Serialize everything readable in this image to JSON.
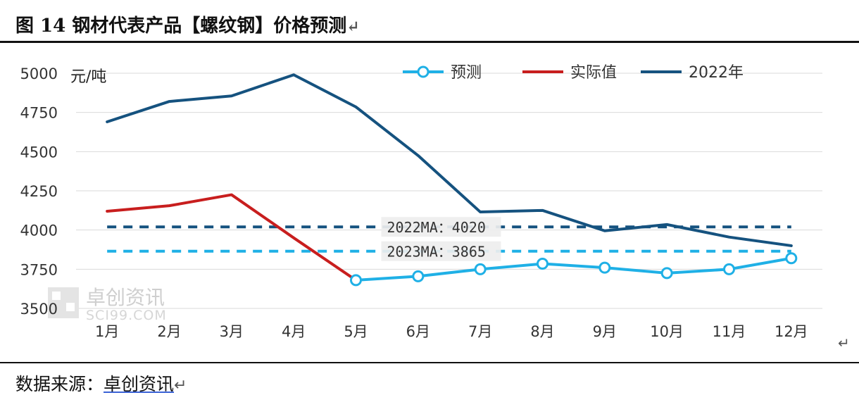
{
  "figure": {
    "title": "图 14 钢材代表产品【螺纹钢】价格预测",
    "source_label": "数据来源：",
    "source_name": "卓创资讯",
    "watermark_cn": "卓创资讯",
    "watermark_en": "SCI99.COM",
    "return_mark": "↵"
  },
  "colors": {
    "forecast": "#1fb0e6",
    "actual": "#c81e1e",
    "y2022": "#15527f",
    "ma2022": "#15527f",
    "ma2023": "#1fb0e6",
    "grid": "#d9d9d9",
    "axis_text": "#333333"
  },
  "chart_data": {
    "type": "line",
    "title": "",
    "ylabel": "元/吨",
    "ylim": [
      3500,
      5000
    ],
    "yticks": [
      3500,
      3750,
      4000,
      4250,
      4500,
      4750,
      5000
    ],
    "categories": [
      "1月",
      "2月",
      "3月",
      "4月",
      "5月",
      "6月",
      "7月",
      "8月",
      "9月",
      "10月",
      "11月",
      "12月"
    ],
    "legend_position": "top",
    "series": [
      {
        "name": "预测",
        "key": "forecast",
        "markers": true,
        "values": [
          null,
          null,
          null,
          null,
          3680,
          3705,
          3750,
          3785,
          3760,
          3725,
          3750,
          3820
        ]
      },
      {
        "name": "实际值",
        "key": "actual",
        "markers": false,
        "values": [
          4120,
          4155,
          4225,
          3950,
          3680,
          null,
          null,
          null,
          null,
          null,
          null,
          null
        ]
      },
      {
        "name": "2022年",
        "key": "y2022",
        "markers": false,
        "values": [
          4690,
          4820,
          4855,
          4990,
          4785,
          4475,
          4115,
          4125,
          3995,
          4035,
          3955,
          3900
        ]
      }
    ],
    "reference_lines": [
      {
        "key": "ma2022",
        "value": 4020,
        "label": "2022MA：4020"
      },
      {
        "key": "ma2023",
        "value": 3865,
        "label": "2023MA：3865"
      }
    ]
  }
}
